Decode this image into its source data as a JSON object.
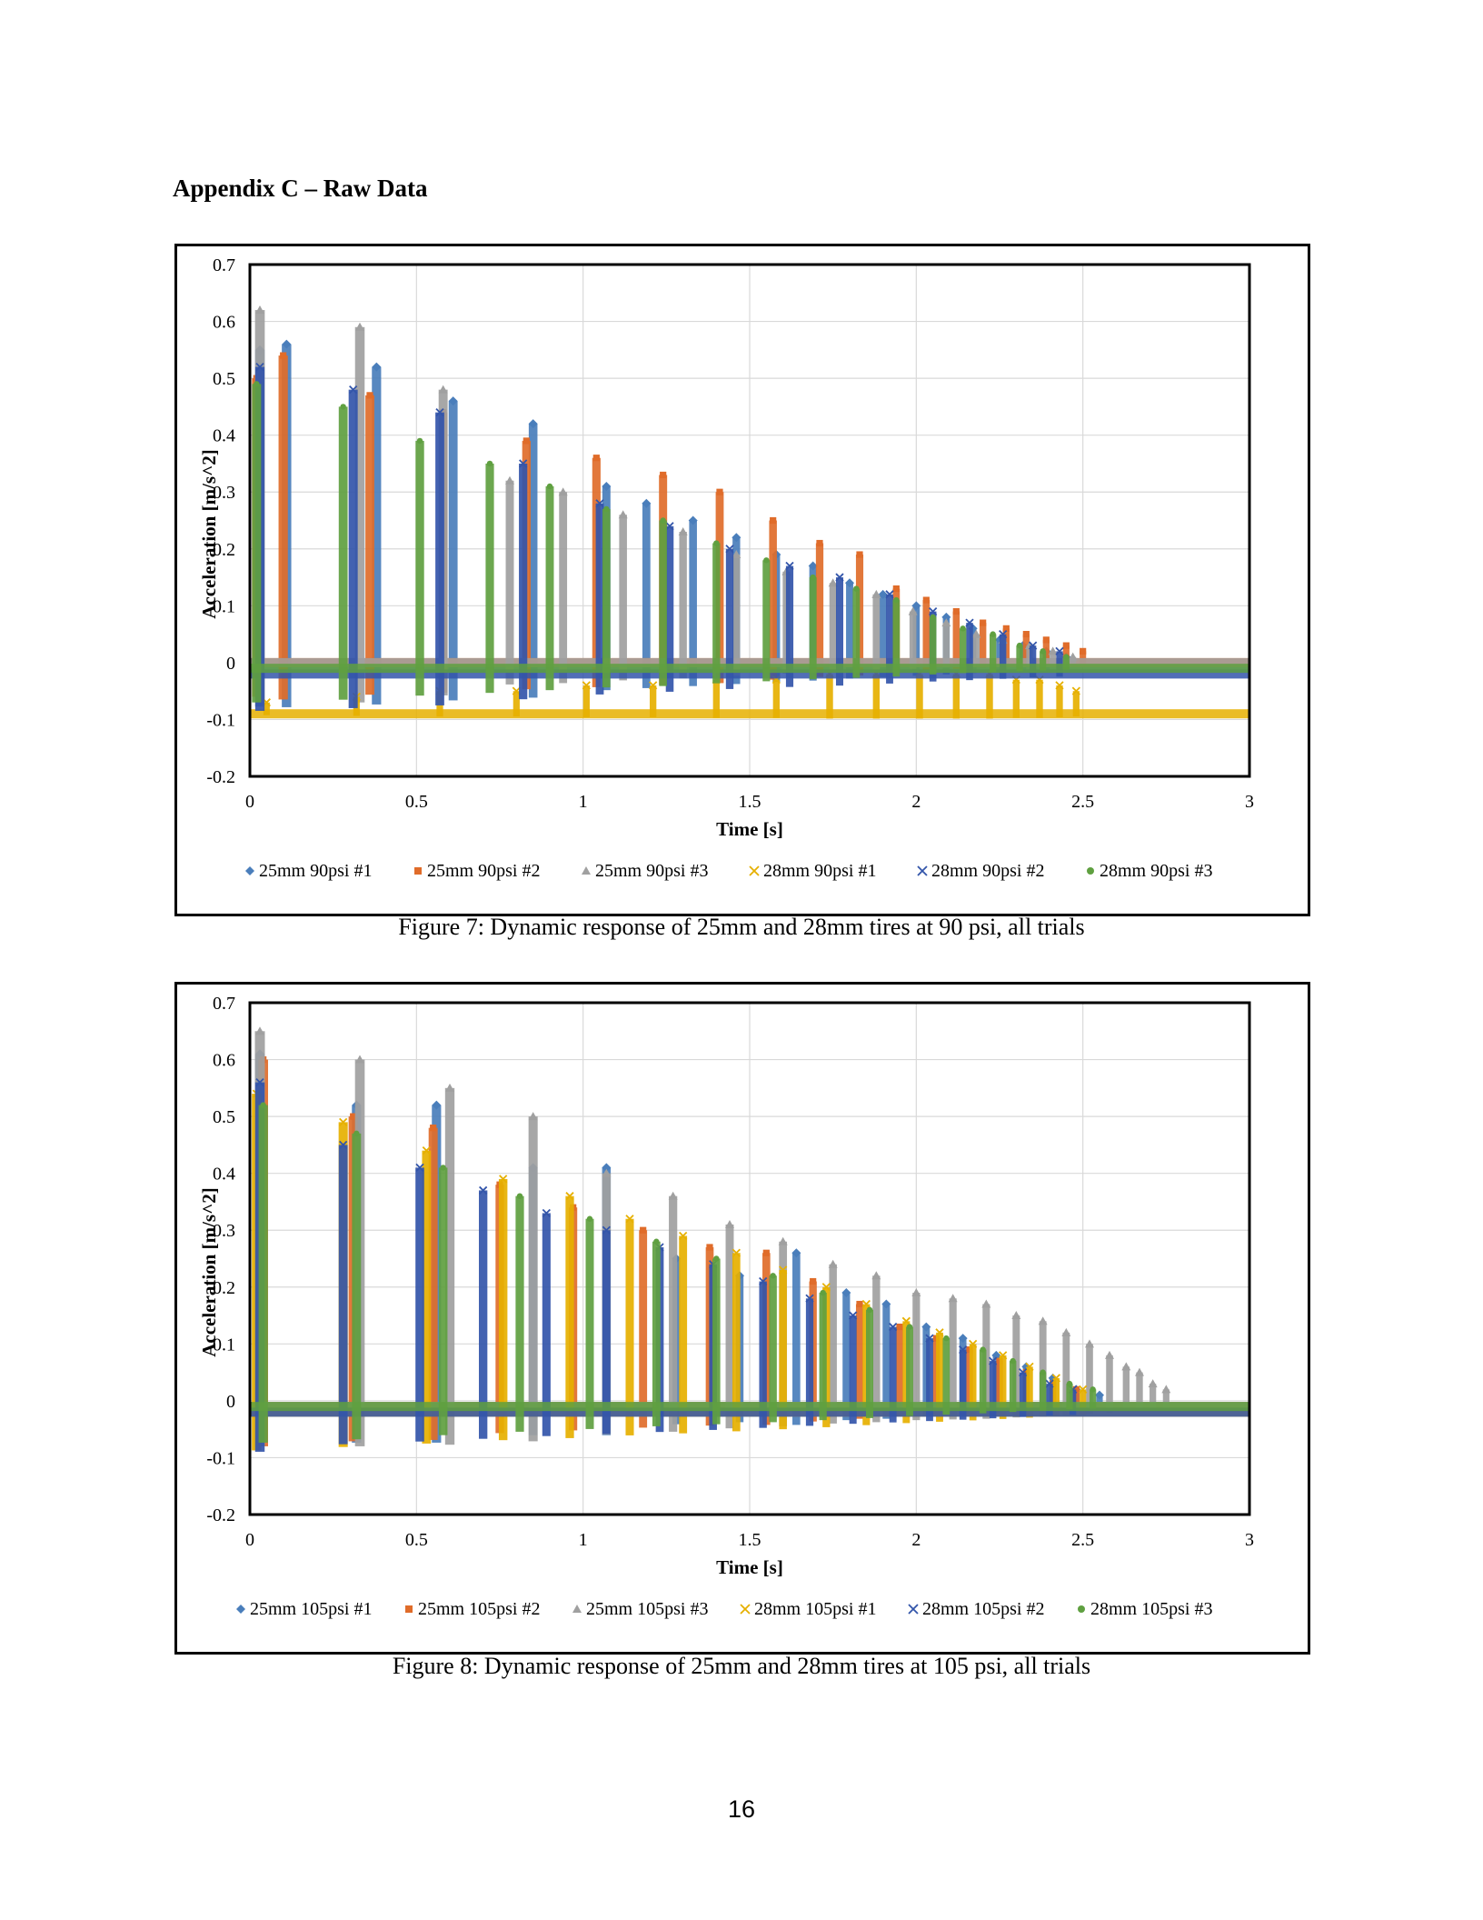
{
  "heading": "Appendix C – Raw Data",
  "captions": [
    "Figure 7: Dynamic response of 25mm and 28mm tires at 90 psi, all trials",
    "Figure 8: Dynamic response of 25mm and 28mm tires at 105 psi, all trials"
  ],
  "page_number": "16",
  "chart_data": [
    {
      "type": "scatter",
      "xlabel": "Time [s]",
      "ylabel": "Acceleration [m/s^2]",
      "xlim": [
        0,
        3
      ],
      "ylim": [
        -0.2,
        0.7
      ],
      "xticks": [
        "0",
        "0.5",
        "1",
        "1.5",
        "2",
        "2.5",
        "3"
      ],
      "yticks": [
        "0.7",
        "0.6",
        "0.5",
        "0.4",
        "0.3",
        "0.2",
        "0.1",
        "0",
        "-0.1",
        "-0.2"
      ],
      "grid": true,
      "legend_position": "bottom",
      "series": [
        {
          "name": "25mm 90psi #1",
          "color": "#4a7ebb",
          "marker": "diamond",
          "baseline": -0.01,
          "peaks": [
            [
              0.03,
              0.55
            ],
            [
              0.11,
              0.56
            ],
            [
              0.38,
              0.52
            ],
            [
              0.61,
              0.46
            ],
            [
              0.85,
              0.42
            ],
            [
              1.07,
              0.31
            ],
            [
              1.19,
              0.28
            ],
            [
              1.33,
              0.25
            ],
            [
              1.46,
              0.22
            ],
            [
              1.58,
              0.19
            ],
            [
              1.69,
              0.17
            ],
            [
              1.8,
              0.14
            ],
            [
              1.9,
              0.12
            ],
            [
              2.0,
              0.1
            ],
            [
              2.09,
              0.08
            ],
            [
              2.17,
              0.06
            ],
            [
              2.25,
              0.04
            ],
            [
              2.32,
              0.03
            ],
            [
              2.39,
              0.02
            ],
            [
              2.45,
              0.01
            ]
          ]
        },
        {
          "name": "25mm 90psi #2",
          "color": "#e06c2a",
          "marker": "square",
          "baseline": 0.0,
          "peaks": [
            [
              0.02,
              0.5
            ],
            [
              0.1,
              0.54
            ],
            [
              0.36,
              0.47
            ],
            [
              0.58,
              0.44
            ],
            [
              0.83,
              0.39
            ],
            [
              1.04,
              0.36
            ],
            [
              1.24,
              0.33
            ],
            [
              1.41,
              0.3
            ],
            [
              1.57,
              0.25
            ],
            [
              1.71,
              0.21
            ],
            [
              1.83,
              0.19
            ],
            [
              1.94,
              0.13
            ],
            [
              2.03,
              0.11
            ],
            [
              2.12,
              0.09
            ],
            [
              2.2,
              0.07
            ],
            [
              2.27,
              0.06
            ],
            [
              2.33,
              0.05
            ],
            [
              2.39,
              0.04
            ],
            [
              2.45,
              0.03
            ],
            [
              2.5,
              0.02
            ]
          ]
        },
        {
          "name": "25mm 90psi #3",
          "color": "#a0a0a0",
          "marker": "triangle",
          "baseline": 0.0,
          "peaks": [
            [
              0.03,
              0.62
            ],
            [
              0.33,
              0.59
            ],
            [
              0.58,
              0.48
            ],
            [
              0.78,
              0.32
            ],
            [
              0.94,
              0.3
            ],
            [
              1.12,
              0.26
            ],
            [
              1.3,
              0.23
            ],
            [
              1.46,
              0.19
            ],
            [
              1.61,
              0.16
            ],
            [
              1.75,
              0.14
            ],
            [
              1.88,
              0.12
            ],
            [
              1.99,
              0.09
            ],
            [
              2.09,
              0.07
            ],
            [
              2.18,
              0.05
            ],
            [
              2.26,
              0.04
            ],
            [
              2.34,
              0.03
            ],
            [
              2.41,
              0.02
            ],
            [
              2.47,
              0.01
            ]
          ]
        },
        {
          "name": "28mm 90psi #1",
          "color": "#e6b000",
          "marker": "x",
          "baseline": -0.09,
          "peaks": [
            [
              0.05,
              -0.07
            ],
            [
              0.32,
              -0.06
            ],
            [
              0.57,
              -0.05
            ],
            [
              0.8,
              -0.05
            ],
            [
              1.01,
              -0.04
            ],
            [
              1.21,
              -0.04
            ],
            [
              1.4,
              -0.03
            ],
            [
              1.58,
              -0.03
            ],
            [
              1.74,
              -0.02
            ],
            [
              1.88,
              -0.02
            ],
            [
              2.01,
              -0.02
            ],
            [
              2.12,
              -0.02
            ],
            [
              2.22,
              -0.02
            ],
            [
              2.3,
              -0.03
            ],
            [
              2.37,
              -0.03
            ],
            [
              2.43,
              -0.04
            ],
            [
              2.48,
              -0.05
            ]
          ]
        },
        {
          "name": "28mm 90psi #2",
          "color": "#3355aa",
          "marker": "x",
          "baseline": -0.02,
          "peaks": [
            [
              0.03,
              0.52
            ],
            [
              0.31,
              0.48
            ],
            [
              0.57,
              0.44
            ],
            [
              0.82,
              0.35
            ],
            [
              1.05,
              0.28
            ],
            [
              1.26,
              0.24
            ],
            [
              1.44,
              0.2
            ],
            [
              1.62,
              0.17
            ],
            [
              1.77,
              0.15
            ],
            [
              1.92,
              0.12
            ],
            [
              2.05,
              0.09
            ],
            [
              2.16,
              0.07
            ],
            [
              2.26,
              0.05
            ],
            [
              2.35,
              0.03
            ],
            [
              2.43,
              0.02
            ]
          ]
        },
        {
          "name": "28mm 90psi #3",
          "color": "#5fa040",
          "marker": "circle",
          "baseline": -0.01,
          "peaks": [
            [
              0.02,
              0.49
            ],
            [
              0.28,
              0.45
            ],
            [
              0.51,
              0.39
            ],
            [
              0.72,
              0.35
            ],
            [
              0.9,
              0.31
            ],
            [
              1.07,
              0.27
            ],
            [
              1.24,
              0.25
            ],
            [
              1.4,
              0.21
            ],
            [
              1.55,
              0.18
            ],
            [
              1.69,
              0.15
            ],
            [
              1.82,
              0.13
            ],
            [
              1.94,
              0.11
            ],
            [
              2.05,
              0.08
            ],
            [
              2.14,
              0.06
            ],
            [
              2.23,
              0.05
            ],
            [
              2.31,
              0.03
            ],
            [
              2.38,
              0.02
            ],
            [
              2.45,
              0.01
            ]
          ]
        }
      ]
    },
    {
      "type": "scatter",
      "xlabel": "Time [s]",
      "ylabel": "Acceleration [m/s^2]",
      "xlim": [
        0,
        3
      ],
      "ylim": [
        -0.2,
        0.7
      ],
      "xticks": [
        "0",
        "0.5",
        "1",
        "1.5",
        "2",
        "2.5",
        "3"
      ],
      "yticks": [
        "0.7",
        "0.6",
        "0.5",
        "0.4",
        "0.3",
        "0.2",
        "0.1",
        "0",
        "-0.1",
        "-0.2"
      ],
      "grid": true,
      "legend_position": "bottom",
      "series": [
        {
          "name": "25mm 105psi #1",
          "color": "#4a7ebb",
          "marker": "diamond",
          "baseline": -0.01,
          "peaks": [
            [
              0.03,
              0.61
            ],
            [
              0.32,
              0.52
            ],
            [
              0.56,
              0.52
            ],
            [
              0.85,
              0.41
            ],
            [
              1.07,
              0.41
            ],
            [
              1.28,
              0.25
            ],
            [
              1.47,
              0.22
            ],
            [
              1.64,
              0.26
            ],
            [
              1.79,
              0.19
            ],
            [
              1.91,
              0.17
            ],
            [
              2.03,
              0.13
            ],
            [
              2.14,
              0.11
            ],
            [
              2.24,
              0.08
            ],
            [
              2.33,
              0.06
            ],
            [
              2.41,
              0.04
            ],
            [
              2.48,
              0.02
            ],
            [
              2.55,
              0.01
            ]
          ]
        },
        {
          "name": "25mm 105psi #2",
          "color": "#e06c2a",
          "marker": "square",
          "baseline": -0.01,
          "peaks": [
            [
              0.04,
              0.6
            ],
            [
              0.31,
              0.5
            ],
            [
              0.55,
              0.48
            ],
            [
              0.75,
              0.38
            ],
            [
              0.97,
              0.34
            ],
            [
              1.18,
              0.3
            ],
            [
              1.38,
              0.27
            ],
            [
              1.55,
              0.26
            ],
            [
              1.69,
              0.21
            ],
            [
              1.83,
              0.17
            ],
            [
              1.95,
              0.13
            ],
            [
              2.06,
              0.11
            ],
            [
              2.16,
              0.09
            ],
            [
              2.25,
              0.07
            ],
            [
              2.33,
              0.05
            ],
            [
              2.41,
              0.03
            ],
            [
              2.48,
              0.02
            ]
          ]
        },
        {
          "name": "25mm 105psi #3",
          "color": "#a0a0a0",
          "marker": "triangle",
          "baseline": -0.01,
          "peaks": [
            [
              0.03,
              0.65
            ],
            [
              0.33,
              0.6
            ],
            [
              0.6,
              0.55
            ],
            [
              0.85,
              0.5
            ],
            [
              1.07,
              0.4
            ],
            [
              1.27,
              0.36
            ],
            [
              1.44,
              0.31
            ],
            [
              1.6,
              0.28
            ],
            [
              1.75,
              0.24
            ],
            [
              1.88,
              0.22
            ],
            [
              2.0,
              0.19
            ],
            [
              2.11,
              0.18
            ],
            [
              2.21,
              0.17
            ],
            [
              2.3,
              0.15
            ],
            [
              2.38,
              0.14
            ],
            [
              2.45,
              0.12
            ],
            [
              2.52,
              0.1
            ],
            [
              2.58,
              0.08
            ],
            [
              2.63,
              0.06
            ],
            [
              2.67,
              0.05
            ],
            [
              2.71,
              0.03
            ],
            [
              2.75,
              0.02
            ]
          ]
        },
        {
          "name": "28mm 105psi #1",
          "color": "#e6b000",
          "marker": "x",
          "baseline": -0.02,
          "peaks": [
            [
              0.02,
              0.54
            ],
            [
              0.28,
              0.49
            ],
            [
              0.53,
              0.44
            ],
            [
              0.76,
              0.39
            ],
            [
              0.96,
              0.36
            ],
            [
              1.14,
              0.32
            ],
            [
              1.3,
              0.29
            ],
            [
              1.46,
              0.26
            ],
            [
              1.6,
              0.23
            ],
            [
              1.73,
              0.2
            ],
            [
              1.85,
              0.17
            ],
            [
              1.97,
              0.14
            ],
            [
              2.07,
              0.12
            ],
            [
              2.17,
              0.1
            ],
            [
              2.26,
              0.08
            ],
            [
              2.34,
              0.06
            ],
            [
              2.42,
              0.04
            ],
            [
              2.5,
              0.02
            ]
          ]
        },
        {
          "name": "28mm 105psi #2",
          "color": "#3355aa",
          "marker": "x",
          "baseline": -0.02,
          "peaks": [
            [
              0.03,
              0.56
            ],
            [
              0.28,
              0.45
            ],
            [
              0.51,
              0.41
            ],
            [
              0.7,
              0.37
            ],
            [
              0.89,
              0.33
            ],
            [
              1.07,
              0.3
            ],
            [
              1.23,
              0.27
            ],
            [
              1.39,
              0.24
            ],
            [
              1.54,
              0.21
            ],
            [
              1.68,
              0.18
            ],
            [
              1.81,
              0.15
            ],
            [
              1.93,
              0.13
            ],
            [
              2.04,
              0.11
            ],
            [
              2.14,
              0.09
            ],
            [
              2.23,
              0.07
            ],
            [
              2.32,
              0.05
            ],
            [
              2.4,
              0.03
            ],
            [
              2.47,
              0.02
            ]
          ]
        },
        {
          "name": "28mm 105psi #3",
          "color": "#5fa040",
          "marker": "circle",
          "baseline": -0.01,
          "peaks": [
            [
              0.04,
              0.52
            ],
            [
              0.32,
              0.47
            ],
            [
              0.58,
              0.41
            ],
            [
              0.81,
              0.36
            ],
            [
              1.02,
              0.32
            ],
            [
              1.22,
              0.28
            ],
            [
              1.4,
              0.25
            ],
            [
              1.57,
              0.22
            ],
            [
              1.72,
              0.19
            ],
            [
              1.86,
              0.16
            ],
            [
              1.98,
              0.13
            ],
            [
              2.09,
              0.11
            ],
            [
              2.2,
              0.09
            ],
            [
              2.29,
              0.07
            ],
            [
              2.38,
              0.05
            ],
            [
              2.46,
              0.03
            ],
            [
              2.53,
              0.02
            ]
          ]
        }
      ]
    }
  ]
}
